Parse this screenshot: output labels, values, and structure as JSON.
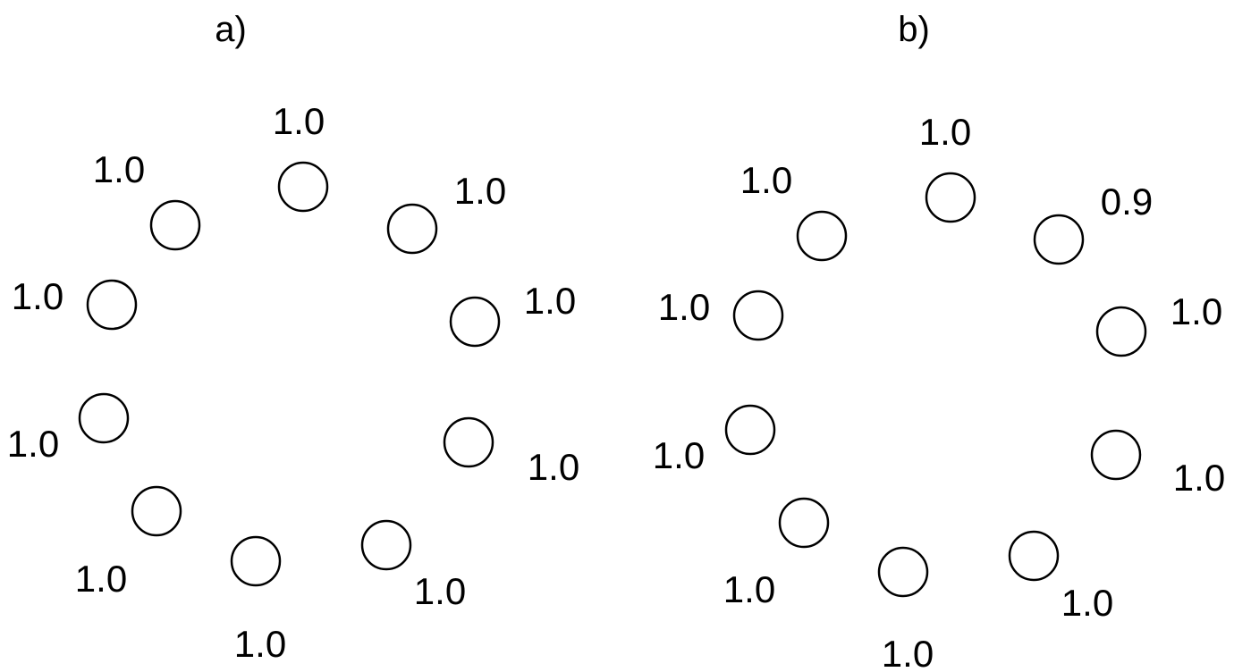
{
  "panels": [
    {
      "title": "a)",
      "nodes": [
        {
          "value": "1.0"
        },
        {
          "value": "1.0"
        },
        {
          "value": "1.0"
        },
        {
          "value": "1.0"
        },
        {
          "value": "1.0"
        },
        {
          "value": "1.0"
        },
        {
          "value": "1.0"
        },
        {
          "value": "1.0"
        },
        {
          "value": "1.0"
        },
        {
          "value": "1.0"
        }
      ]
    },
    {
      "title": "b)",
      "nodes": [
        {
          "value": "1.0"
        },
        {
          "value": "0.9"
        },
        {
          "value": "1.0"
        },
        {
          "value": "1.0"
        },
        {
          "value": "1.0"
        },
        {
          "value": "1.0"
        },
        {
          "value": "1.0"
        },
        {
          "value": "1.0"
        },
        {
          "value": "1.0"
        },
        {
          "value": "1.0"
        }
      ]
    }
  ]
}
